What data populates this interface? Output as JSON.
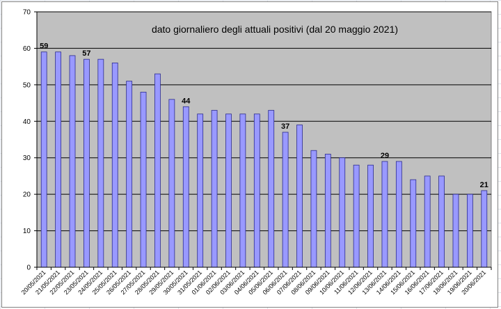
{
  "chart_data": {
    "type": "bar",
    "title": "dato giornaliero degli attuali positivi (dal 20 maggio 2021)",
    "xlabel": "",
    "ylabel": "",
    "ylim": [
      0,
      70
    ],
    "yticks": [
      0,
      10,
      20,
      30,
      40,
      50,
      60,
      70
    ],
    "grid": true,
    "legend": "none",
    "colors": {
      "bar_fill": "#9999ff",
      "bar_stroke": "#2b2b8c",
      "plot_bg": "#c0c0c0",
      "gridline": "#000000"
    },
    "categories": [
      "20/05/2021",
      "21/05/2021",
      "22/05/2021",
      "23/05/2021",
      "24/05/2021",
      "25/05/2021",
      "26/05/2021",
      "27/05/2021",
      "28/05/2021",
      "29/05/2021",
      "30/05/2021",
      "31/05/2021",
      "01/06/2021",
      "02/06/2021",
      "03/06/2021",
      "04/06/2021",
      "05/06/2021",
      "06/06/2021",
      "07/06/2021",
      "08/06/2021",
      "09/06/2021",
      "10/06/2021",
      "11/06/2021",
      "12/06/2021",
      "13/06/2021",
      "14/06/2021",
      "15/06/2021",
      "16/06/2021",
      "17/06/2021",
      "18/06/2021",
      "19/06/2021",
      "20/06/2021"
    ],
    "values": [
      59,
      59,
      58,
      57,
      57,
      56,
      51,
      48,
      53,
      46,
      44,
      42,
      43,
      42,
      42,
      42,
      43,
      37,
      39,
      32,
      31,
      30,
      28,
      28,
      29,
      29,
      24,
      25,
      25,
      20,
      20,
      21
    ],
    "data_labels": [
      {
        "index": 0,
        "text": "59"
      },
      {
        "index": 3,
        "text": "57"
      },
      {
        "index": 10,
        "text": "44"
      },
      {
        "index": 17,
        "text": "37"
      },
      {
        "index": 24,
        "text": "29"
      },
      {
        "index": 31,
        "text": "21"
      }
    ]
  }
}
